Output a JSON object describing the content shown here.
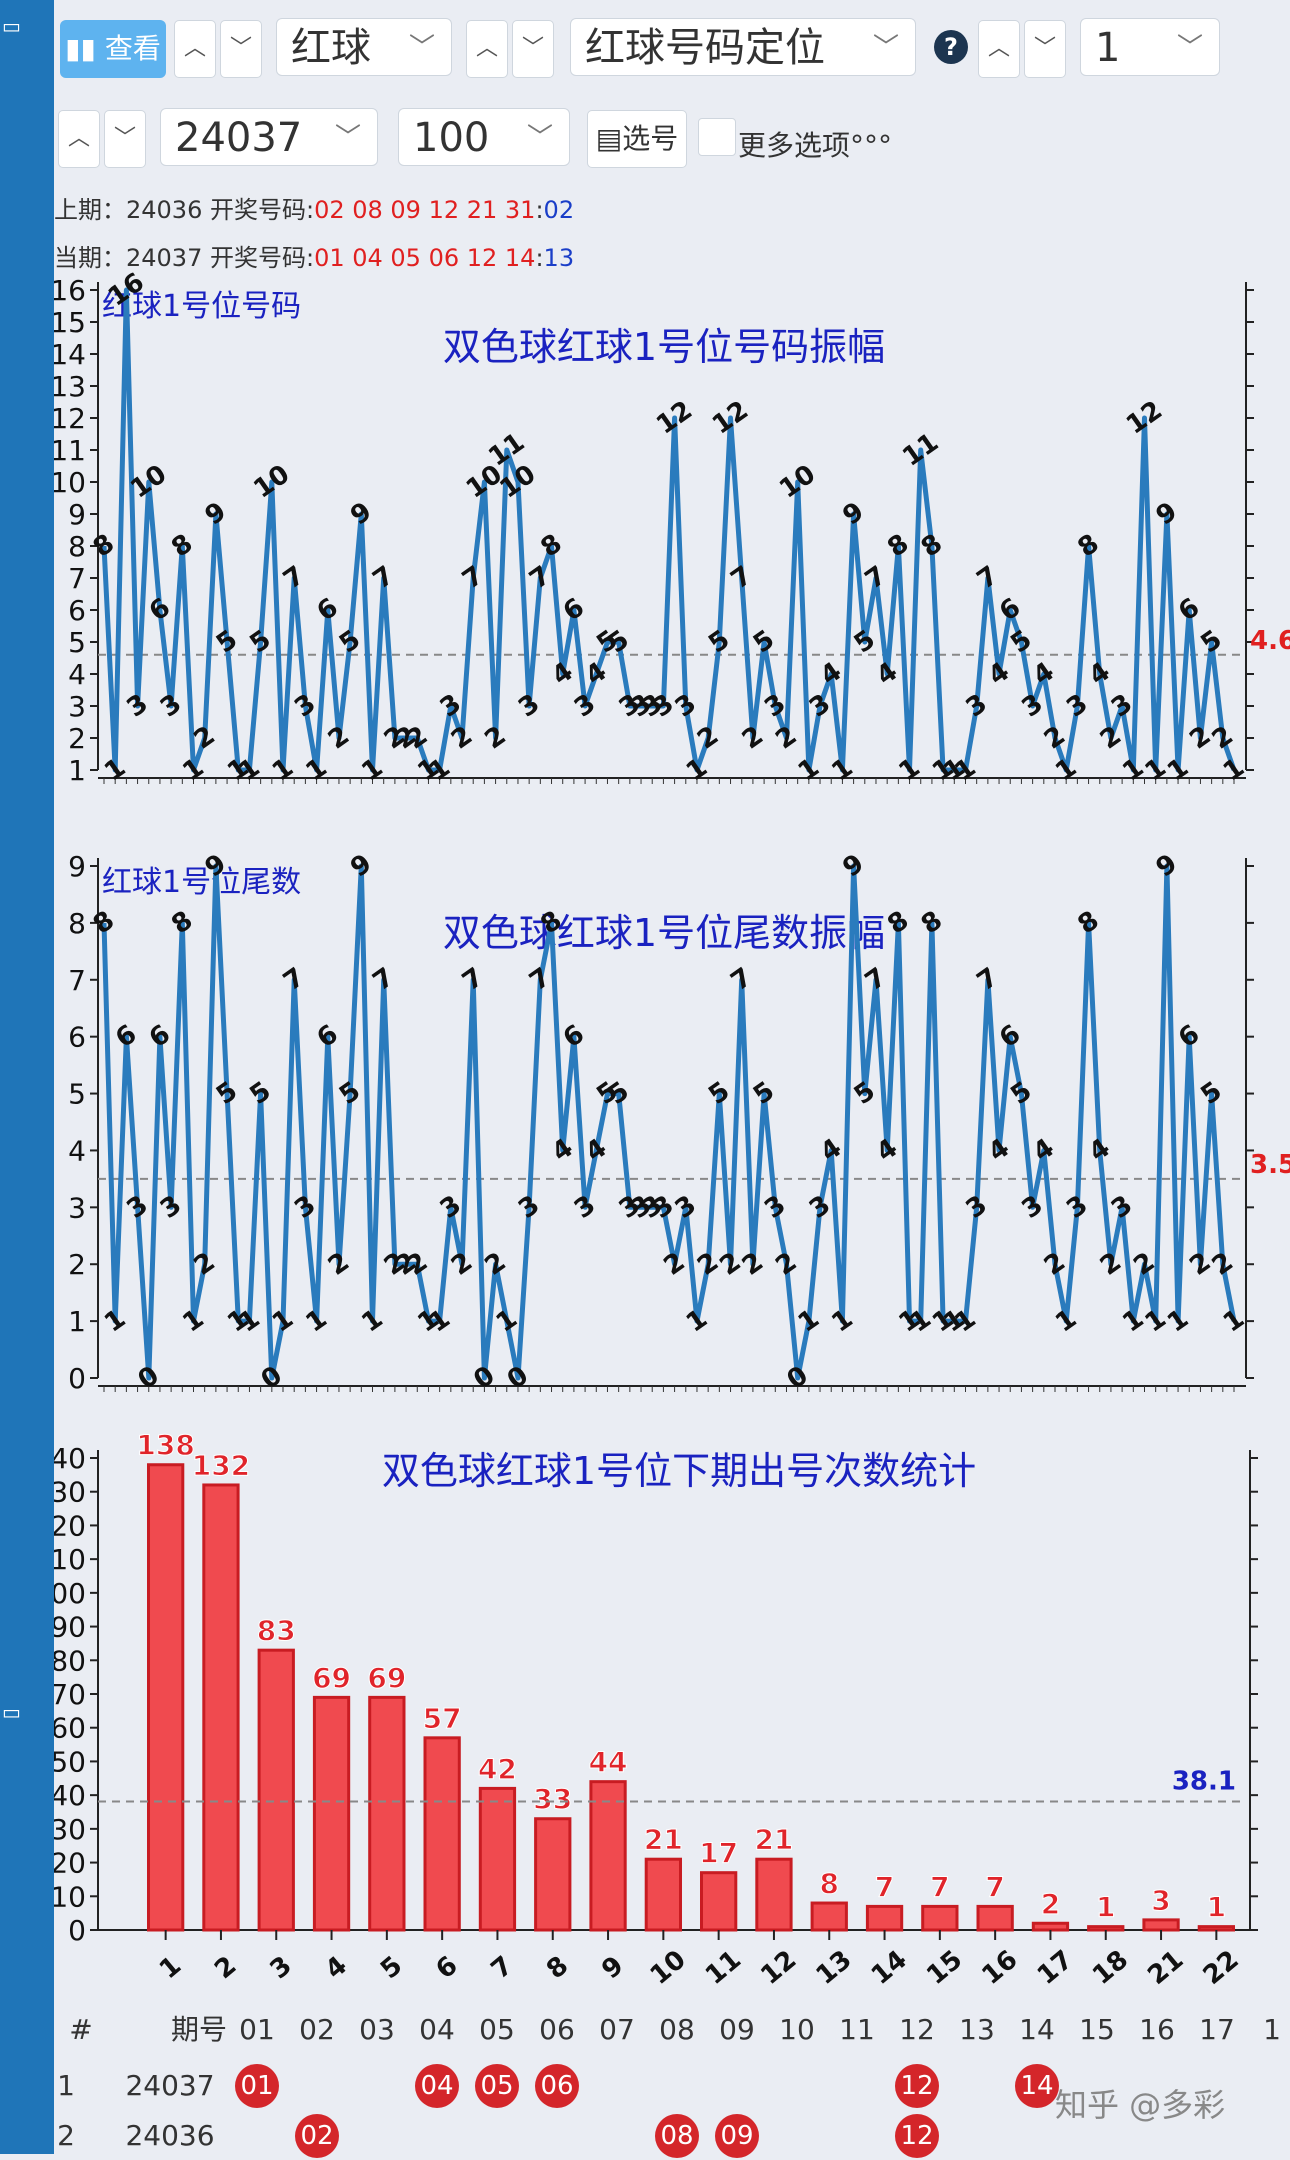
{
  "toolbar": {
    "query_label": "查看",
    "ball_type": "红球",
    "mode": "红球号码定位",
    "position": "1",
    "issue": "24037",
    "count": "100",
    "pick_label": "选号",
    "more_label": "更多选项°°°"
  },
  "info": {
    "prev_prefix": "上期：24036 开奖号码:",
    "prev_red": "02 08 09 12 21 31",
    "prev_blue": "02",
    "curr_prefix": "当期：24037 开奖号码:",
    "curr_red": "01 04 05 06 12 14",
    "curr_blue": "13"
  },
  "colors": {
    "line": "#2a7bbd",
    "bar": "#f04a4f",
    "title": "#1a22c0",
    "mean": "#e02020"
  },
  "chart_data": [
    {
      "type": "line",
      "title": "双色球红球1号位号码振幅",
      "legend": "红球1号位号码",
      "ylim": [
        1,
        16
      ],
      "mean_label": "4.6",
      "mean": 4.6,
      "values": [
        8,
        1,
        16,
        3,
        10,
        6,
        3,
        8,
        1,
        2,
        9,
        5,
        1,
        1,
        5,
        10,
        1,
        7,
        3,
        1,
        6,
        2,
        5,
        9,
        1,
        7,
        2,
        2,
        2,
        1,
        1,
        3,
        2,
        7,
        10,
        2,
        11,
        10,
        3,
        7,
        8,
        4,
        6,
        3,
        4,
        5,
        5,
        3,
        3,
        3,
        3,
        12,
        3,
        1,
        2,
        5,
        12,
        7,
        2,
        5,
        3,
        2,
        10,
        1,
        3,
        4,
        1,
        9,
        5,
        7,
        4,
        8,
        1,
        11,
        8,
        1,
        1,
        1,
        3,
        7,
        4,
        6,
        5,
        3,
        4,
        2,
        1,
        3,
        8,
        4,
        2,
        3,
        1,
        12,
        1,
        9,
        1,
        6,
        2,
        5,
        2,
        1
      ]
    },
    {
      "type": "line",
      "title": "双色球红球1号位尾数振幅",
      "legend": "红球1号位尾数",
      "ylim": [
        0,
        9
      ],
      "mean_label": "3.5",
      "mean": 3.5,
      "values": [
        8,
        1,
        6,
        3,
        0,
        6,
        3,
        8,
        1,
        2,
        9,
        5,
        1,
        1,
        5,
        0,
        1,
        7,
        3,
        1,
        6,
        2,
        5,
        9,
        1,
        7,
        2,
        2,
        2,
        1,
        1,
        3,
        2,
        7,
        0,
        2,
        1,
        0,
        3,
        7,
        8,
        4,
        6,
        3,
        4,
        5,
        5,
        3,
        3,
        3,
        3,
        2,
        3,
        1,
        2,
        5,
        2,
        7,
        2,
        5,
        3,
        2,
        0,
        1,
        3,
        4,
        1,
        9,
        5,
        7,
        4,
        8,
        1,
        1,
        8,
        1,
        1,
        1,
        3,
        7,
        4,
        6,
        5,
        3,
        4,
        2,
        1,
        3,
        8,
        4,
        2,
        3,
        1,
        2,
        1,
        9,
        1,
        6,
        2,
        5,
        2,
        1
      ]
    },
    {
      "type": "bar",
      "title": "双色球红球1号位下期出号次数统计",
      "categories": [
        "1",
        "2",
        "3",
        "4",
        "5",
        "6",
        "7",
        "8",
        "9",
        "10",
        "11",
        "12",
        "13",
        "14",
        "15",
        "16",
        "17",
        "18",
        "21",
        "22"
      ],
      "values": [
        138,
        132,
        83,
        69,
        69,
        57,
        42,
        33,
        44,
        21,
        17,
        21,
        8,
        7,
        7,
        7,
        2,
        1,
        3,
        1
      ],
      "ylim": [
        0,
        140
      ],
      "mean_label": "38.1",
      "mean": 38.1
    }
  ],
  "table": {
    "headers": [
      "#",
      "期号",
      "01",
      "02",
      "03",
      "04",
      "05",
      "06",
      "07",
      "08",
      "09",
      "10",
      "11",
      "12",
      "13",
      "14",
      "15",
      "16",
      "17",
      "1"
    ],
    "rows": [
      {
        "idx": "1",
        "issue": "24037",
        "balls": [
          "01",
          "04",
          "05",
          "06",
          "12",
          "14"
        ]
      },
      {
        "idx": "2",
        "issue": "24036",
        "balls": [
          "02",
          "08",
          "09",
          "12"
        ]
      }
    ]
  },
  "watermark": "知乎 @多彩"
}
